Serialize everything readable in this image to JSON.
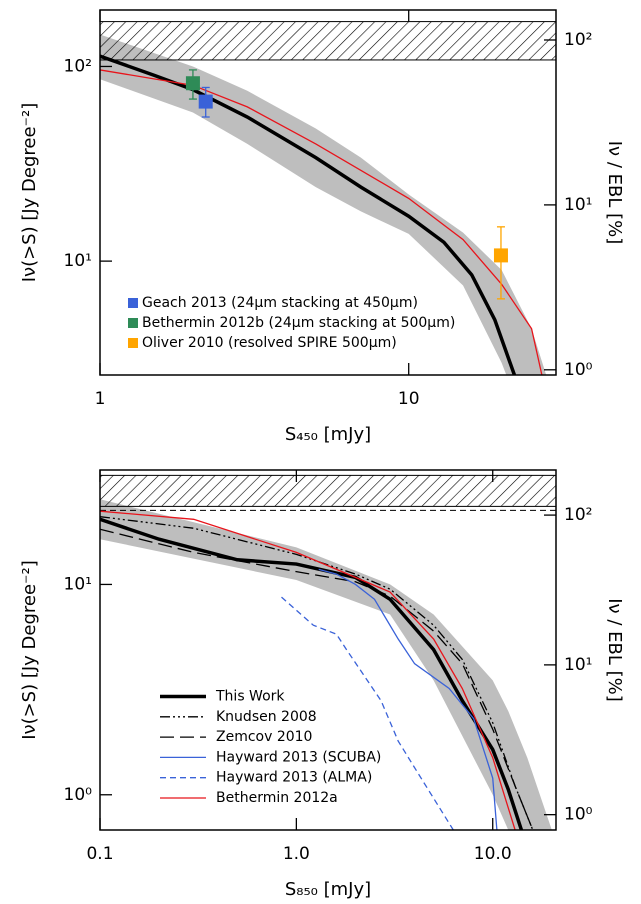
{
  "chart_data": [
    {
      "type": "line",
      "x_label": "S₄₅₀ [mJy]",
      "y_label": "Iν(>S) [Jy Degree⁻²]",
      "y2_label": "Iν / EBL [%]",
      "log_x": true,
      "log_y": true,
      "xlim": [
        1,
        30
      ],
      "xticks": [
        1,
        10
      ],
      "ylim": [
        2.6,
        195
      ],
      "yticks": [
        {
          "value": 100,
          "label": "10²"
        },
        {
          "value": 10,
          "label": "10¹"
        }
      ],
      "y2lim": [
        0.93,
        152
      ],
      "y2ticks": [
        {
          "value": 100,
          "label": "10²"
        },
        {
          "value": 10,
          "label": "10¹"
        },
        {
          "value": 1,
          "label": "10⁰"
        }
      ],
      "hatched_region": [
        108,
        170
      ],
      "shaded_band": {
        "color": "#bebebe",
        "x": [
          1,
          2,
          3,
          5,
          7,
          10,
          15,
          20,
          25,
          30
        ],
        "upper": [
          146,
          100,
          75,
          48,
          34,
          22,
          14,
          9,
          4.5,
          1.8
        ],
        "lower": [
          86,
          58,
          40,
          24,
          18,
          13.8,
          7.5,
          3.0,
          1.2,
          0.5
        ]
      },
      "series": [
        {
          "color": "#000000",
          "line_style": "thick",
          "x": [
            1,
            1.5,
            2,
            3,
            5,
            7,
            10,
            13,
            16,
            19,
            22
          ],
          "values": [
            113,
            90,
            76,
            55,
            34,
            24,
            17,
            12.5,
            8.5,
            5,
            2.6
          ]
        },
        {
          "color": "#e8141b",
          "line_style": "solid",
          "x": [
            1,
            2,
            3,
            5,
            10,
            15,
            20,
            25,
            27
          ],
          "values": [
            96,
            80,
            62,
            40,
            21,
            12.9,
            7.6,
            4.5,
            2.6
          ]
        }
      ],
      "legend": "lower left",
      "points": [
        {
          "name": "Geach 2013 (24μm stacking at 450μm)",
          "color": "#3a62d8",
          "x": [
            2.2
          ],
          "y": [
            66
          ],
          "y_low": [
            55
          ],
          "y_high": [
            78
          ]
        },
        {
          "name": "Bethermin 2012b (24μm stacking at 500μm)",
          "color": "#2e8b57",
          "x": [
            2.0
          ],
          "y": [
            82
          ],
          "y_low": [
            68
          ],
          "y_high": [
            96
          ]
        },
        {
          "name": "Oliver 2010 (resolved SPIRE 500μm)",
          "color": "#ffa500",
          "x": [
            19.9
          ],
          "y": [
            10.7
          ],
          "y_low": [
            6.4
          ],
          "y_high": [
            15
          ]
        }
      ]
    },
    {
      "type": "line",
      "x_label": "S₈₅₀ [mJy]",
      "y_label": "Iν(>S) [Jy Degree⁻²]",
      "y2_label": "Iν / EBL [%]",
      "log_x": true,
      "log_y": true,
      "xlim": [
        0.1,
        21
      ],
      "xticks": [
        0.1,
        {
          "value": 1,
          "label": "1.0"
        },
        {
          "value": 10,
          "label": "10.0"
        }
      ],
      "ylim": [
        0.68,
        35
      ],
      "yticks": [
        {
          "value": 10,
          "label": "10¹"
        },
        {
          "value": 1,
          "label": "10⁰"
        }
      ],
      "y2lim": [
        0.79,
        200
      ],
      "y2ticks": [
        {
          "value": 100,
          "label": "10²"
        },
        {
          "value": 10,
          "label": "10¹"
        },
        {
          "value": 1,
          "label": "10⁰"
        }
      ],
      "hatched_region": [
        23.5,
        33
      ],
      "ebl_line": 22.5,
      "shaded_band": {
        "color": "#bebebe",
        "x": [
          0.1,
          1,
          3,
          5,
          10,
          12,
          15,
          20
        ],
        "upper": [
          25.4,
          15,
          10,
          7.2,
          3.5,
          2.5,
          1.5,
          0.68
        ],
        "lower": [
          16.4,
          10.5,
          7.2,
          3.5,
          1.0,
          0.68,
          0.4,
          0.2
        ]
      },
      "legend": "lower left",
      "series": [
        {
          "name": "This Work",
          "color": "#000000",
          "line_style": "thick",
          "x": [
            0.1,
            0.2,
            0.5,
            1,
            2,
            3,
            5,
            7,
            10,
            12,
            14
          ],
          "values": [
            20.4,
            16.4,
            13.1,
            12.5,
            10.8,
            8.5,
            4.9,
            2.8,
            1.64,
            1.06,
            0.68
          ]
        },
        {
          "name": "Knudsen 2008",
          "color": "#000000",
          "line_style": "dash-dot-dot",
          "x": [
            0.1,
            0.3,
            1,
            2,
            3,
            5,
            7,
            10,
            13,
            16
          ],
          "values": [
            21,
            18.5,
            13.9,
            11.2,
            9.5,
            6.4,
            4.4,
            2.2,
            1.1,
            0.68
          ]
        },
        {
          "name": "Zemcov 2010",
          "color": "#000000",
          "line_style": "long-dash",
          "x": [
            0.1,
            0.3,
            1,
            2,
            3,
            5,
            7,
            10,
            13,
            16
          ],
          "values": [
            18.3,
            14.2,
            11.5,
            10.3,
            8.8,
            6.0,
            4.2,
            2.05,
            1.1,
            0.68
          ]
        },
        {
          "name": "Hayward 2013 (SCUBA)",
          "color": "#3a62d8",
          "line_style": "solid",
          "x": [
            1.3,
            1.6,
            2,
            2.5,
            3.3,
            4,
            6,
            8,
            10,
            10.5
          ],
          "values": [
            11.8,
            11.2,
            10,
            8.5,
            5.5,
            4.2,
            3.2,
            2.3,
            1.2,
            0.68
          ]
        },
        {
          "name": "Hayward 2013 (ALMA)",
          "color": "#3a62d8",
          "line_style": "dash",
          "x": [
            0.84,
            1.22,
            1.6,
            1.8,
            2.7,
            3.3,
            4.2,
            6.3
          ],
          "values": [
            8.7,
            6.4,
            5.8,
            4.9,
            2.8,
            1.8,
            1.25,
            0.68
          ]
        },
        {
          "name": "Bethermin 2012a",
          "color": "#e8141b",
          "line_style": "solid",
          "x": [
            0.1,
            0.3,
            1,
            2,
            3,
            5,
            7,
            10,
            13
          ],
          "values": [
            22.3,
            20.4,
            14.2,
            10.8,
            9.2,
            5.5,
            3.2,
            1.5,
            0.68
          ]
        }
      ]
    }
  ]
}
